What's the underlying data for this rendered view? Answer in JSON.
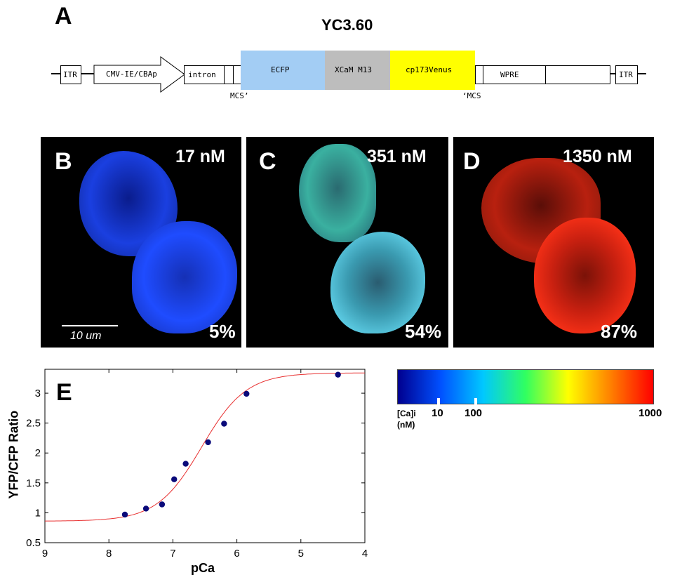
{
  "panel_a": {
    "letter": "A",
    "construct_title": "YC3.60",
    "elements": {
      "itr_left": "ITR",
      "promoter": "CMV-IE/CBAp",
      "intron": "intron",
      "ecfp": "ECFP",
      "xcam": "XCaM M13",
      "venus": "cp173Venus",
      "wpre": "WPRE",
      "itr_right": "ITR"
    },
    "mcs_left": "MCS’",
    "mcs_right": "‘MCS",
    "colors": {
      "ecfp": "#a3cdf4",
      "xcam": "#bdbdbd",
      "venus": "#ffff00"
    }
  },
  "panel_b": {
    "letter": "B",
    "concentration": "17 nM",
    "percent": "5%",
    "scale_bar": "10 um"
  },
  "panel_c": {
    "letter": "C",
    "concentration": "351 nM",
    "percent": "54%"
  },
  "panel_d": {
    "letter": "D",
    "concentration": "1350 nM",
    "percent": "87%"
  },
  "colorbar": {
    "caption_line1": "[Ca]i",
    "caption_line2": "(nM)",
    "tick_10": "10",
    "tick_100": "100",
    "tick_1000": "1000",
    "colors": [
      "#00008f",
      "#0050ff",
      "#00c8ff",
      "#30ff60",
      "#ffff00",
      "#ff8000",
      "#ff0000"
    ]
  },
  "panel_e": {
    "letter": "E"
  },
  "chart_data": {
    "type": "scatter",
    "title": "",
    "xlabel": "pCa",
    "ylabel": "YFP/CFP Ratio",
    "xlim": [
      9,
      4
    ],
    "ylim": [
      0.5,
      3.4
    ],
    "x_reversed": true,
    "xticks": [
      9,
      8,
      7,
      6,
      5,
      4
    ],
    "yticks": [
      0.5,
      1,
      1.5,
      2,
      2.5,
      3
    ],
    "ytick_labels": [
      "0.5",
      "1",
      "1.5",
      "2",
      "2.5",
      "3"
    ],
    "points": [
      [
        7.75,
        0.97
      ],
      [
        7.42,
        1.07
      ],
      [
        7.17,
        1.14
      ],
      [
        6.98,
        1.56
      ],
      [
        6.8,
        1.82
      ],
      [
        6.45,
        2.18
      ],
      [
        6.2,
        2.49
      ],
      [
        5.85,
        2.99
      ],
      [
        4.42,
        3.31
      ]
    ],
    "point_color": "#0a0a7a",
    "fit": {
      "type": "sigmoid",
      "min": 0.86,
      "max": 3.34,
      "center": 6.55,
      "hill": 1.25,
      "color": "#e83030"
    },
    "grid": false,
    "legend": "none"
  }
}
